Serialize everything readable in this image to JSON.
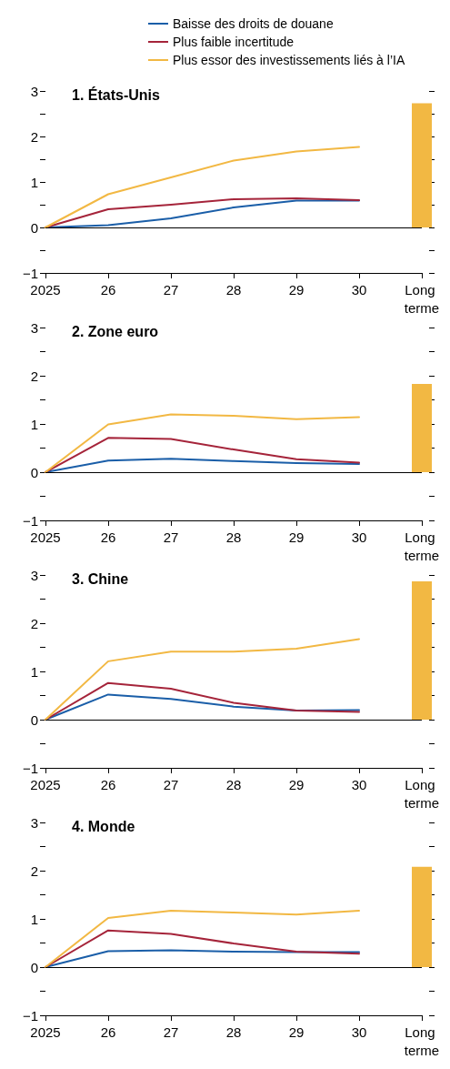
{
  "chart_data": [
    {
      "type": "line",
      "title": "1. États-Unis",
      "categories": [
        "2025",
        "26",
        "27",
        "28",
        "29",
        "30",
        "Long terme"
      ],
      "ylim": [
        -1,
        3
      ],
      "yticks": [
        {
          "value": -1,
          "label": "−1"
        },
        {
          "value": -0.5,
          "label": null
        },
        0,
        {
          "value": 0.5,
          "label": null
        },
        1,
        {
          "value": 1.5,
          "label": null
        },
        2,
        {
          "value": 2.5,
          "label": null
        },
        3
      ],
      "grid": false,
      "legend": "top",
      "marker": "none",
      "ref_lines": [
        {
          "axis": "y",
          "value": 0,
          "color": "#000000"
        }
      ],
      "series": [
        {
          "name": "Baisse des droits de douane",
          "color": "#1a5ea8",
          "values": [
            0,
            0.05,
            0.2,
            0.44,
            0.59,
            0.59,
            null
          ]
        },
        {
          "name": "Plus faible incertitude",
          "color": "#a5243a",
          "values": [
            0,
            0.4,
            0.5,
            0.62,
            0.64,
            0.6,
            null
          ]
        },
        {
          "name": "Plus essor des investissements liés à l’IA",
          "color": "#f2b843",
          "values": [
            0,
            0.73,
            1.1,
            1.47,
            1.67,
            1.77,
            null
          ]
        },
        {
          "type": "bar",
          "color": "#f2b843",
          "values": [
            null,
            null,
            null,
            null,
            null,
            null,
            2.73
          ]
        }
      ]
    },
    {
      "type": "line",
      "title": "2. Zone euro",
      "categories": [
        "2025",
        "26",
        "27",
        "28",
        "29",
        "30",
        "Long terme"
      ],
      "ylim": [
        -1,
        3
      ],
      "yticks": [
        {
          "value": -1,
          "label": "−1"
        },
        {
          "value": -0.5,
          "label": null
        },
        0,
        {
          "value": 0.5,
          "label": null
        },
        1,
        {
          "value": 1.5,
          "label": null
        },
        2,
        {
          "value": 2.5,
          "label": null
        },
        3
      ],
      "grid": false,
      "legend": false,
      "marker": "none",
      "ref_lines": [
        {
          "axis": "y",
          "value": 0,
          "color": "#000000"
        }
      ],
      "series": [
        {
          "color": "#1a5ea8",
          "values": [
            0,
            0.24,
            0.28,
            0.23,
            0.19,
            0.17,
            null
          ]
        },
        {
          "color": "#a5243a",
          "values": [
            0,
            0.71,
            0.69,
            0.47,
            0.27,
            0.2,
            null
          ]
        },
        {
          "color": "#f2b843",
          "values": [
            0,
            0.99,
            1.2,
            1.17,
            1.1,
            1.14,
            null
          ]
        },
        {
          "type": "bar",
          "color": "#f2b843",
          "values": [
            null,
            null,
            null,
            null,
            null,
            null,
            1.83
          ]
        }
      ]
    },
    {
      "type": "line",
      "title": "3. Chine",
      "categories": [
        "2025",
        "26",
        "27",
        "28",
        "29",
        "30",
        "Long terme"
      ],
      "ylim": [
        -1,
        3
      ],
      "yticks": [
        {
          "value": -1,
          "label": "−1"
        },
        {
          "value": -0.5,
          "label": null
        },
        0,
        {
          "value": 0.5,
          "label": null
        },
        1,
        {
          "value": 1.5,
          "label": null
        },
        2,
        {
          "value": 2.5,
          "label": null
        },
        3
      ],
      "grid": false,
      "legend": false,
      "marker": "none",
      "ref_lines": [
        {
          "axis": "y",
          "value": 0,
          "color": "#000000"
        }
      ],
      "series": [
        {
          "color": "#1a5ea8",
          "values": [
            0,
            0.52,
            0.43,
            0.27,
            0.19,
            0.2,
            null
          ]
        },
        {
          "color": "#a5243a",
          "values": [
            0,
            0.76,
            0.64,
            0.35,
            0.19,
            0.16,
            null
          ]
        },
        {
          "color": "#f2b843",
          "values": [
            0,
            1.21,
            1.41,
            1.41,
            1.47,
            1.67,
            null
          ]
        },
        {
          "type": "bar",
          "color": "#f2b843",
          "values": [
            null,
            null,
            null,
            null,
            null,
            null,
            2.87
          ]
        }
      ]
    },
    {
      "type": "line",
      "title": "4. Monde",
      "categories": [
        "2025",
        "26",
        "27",
        "28",
        "29",
        "30",
        "Long terme"
      ],
      "ylim": [
        -1,
        3
      ],
      "yticks": [
        {
          "value": -1,
          "label": "−1"
        },
        {
          "value": -0.5,
          "label": null
        },
        0,
        {
          "value": 0.5,
          "label": null
        },
        1,
        {
          "value": 1.5,
          "label": null
        },
        2,
        {
          "value": 2.5,
          "label": null
        },
        3
      ],
      "grid": false,
      "legend": false,
      "marker": "none",
      "ref_lines": [
        {
          "axis": "y",
          "value": 0,
          "color": "#000000"
        }
      ],
      "series": [
        {
          "color": "#1a5ea8",
          "values": [
            0,
            0.33,
            0.35,
            0.32,
            0.31,
            0.31,
            null
          ]
        },
        {
          "color": "#a5243a",
          "values": [
            0,
            0.76,
            0.69,
            0.49,
            0.32,
            0.28,
            null
          ]
        },
        {
          "color": "#f2b843",
          "values": [
            0,
            1.02,
            1.17,
            1.13,
            1.09,
            1.17,
            null
          ]
        },
        {
          "type": "bar",
          "color": "#f2b843",
          "values": [
            null,
            null,
            null,
            null,
            null,
            null,
            2.08
          ]
        }
      ]
    }
  ]
}
